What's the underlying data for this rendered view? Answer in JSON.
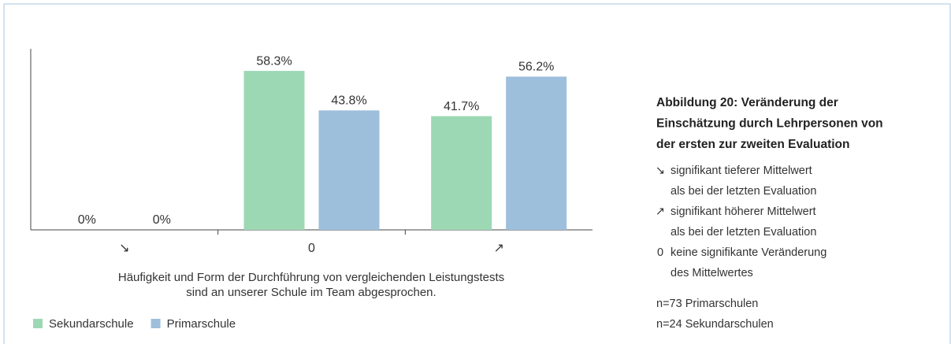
{
  "chart_data": {
    "type": "bar",
    "categories": [
      "↘",
      "0",
      "↗"
    ],
    "series": [
      {
        "name": "Sekundarschule",
        "color": "#9dd8b5",
        "values": [
          0,
          58.3,
          41.7
        ],
        "value_labels": [
          "0%",
          "58.3%",
          "41.7%"
        ]
      },
      {
        "name": "Primarschule",
        "color": "#9dbfdc",
        "values": [
          0,
          43.8,
          56.2
        ],
        "value_labels": [
          "0%",
          "43.8%",
          "56.2%"
        ]
      }
    ],
    "ylim": [
      0,
      66.4
    ],
    "xlabel": [
      "Häufigkeit und Form der Durchführung von vergleichenden Leistungstests",
      "sind an unserer Schule im Team abgesprochen."
    ],
    "side_title": [
      "Abbildung 20: Veränderung der",
      "Einschätzung durch Lehrpersonen von",
      "der ersten zur zweiten Evaluation"
    ],
    "key": [
      {
        "symbol": "↘",
        "lines": [
          "signifikant tieferer Mittelwert",
          "als bei der letzten Evaluation"
        ]
      },
      {
        "symbol": "↗",
        "lines": [
          "signifikant höherer Mittelwert",
          "als bei der letzten Evaluation"
        ]
      },
      {
        "symbol": "0",
        "lines": [
          "keine signifikante Veränderung",
          "des Mittelwertes"
        ]
      }
    ],
    "sample": [
      "n=73 Primarschulen",
      "n=24 Sekundarschulen"
    ]
  }
}
